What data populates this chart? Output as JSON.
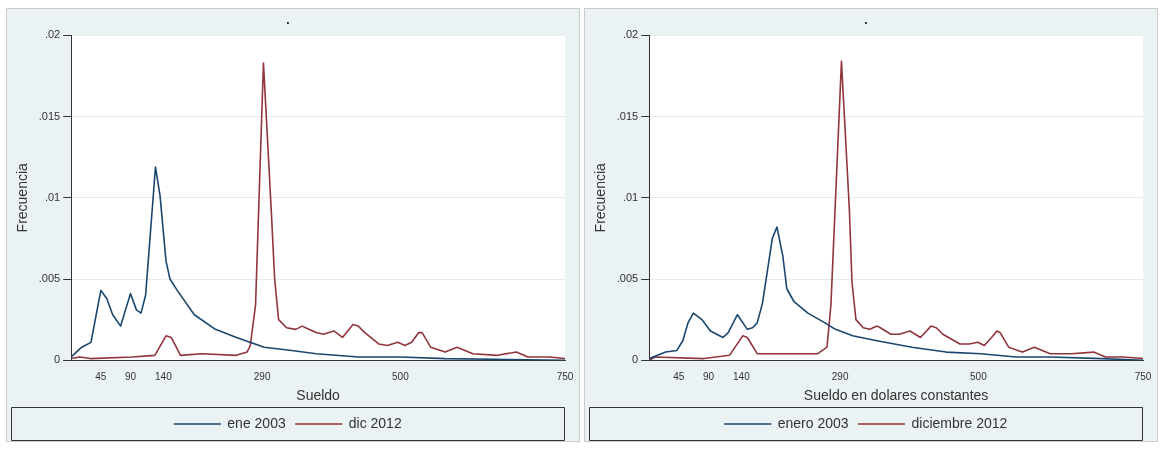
{
  "chart_data": [
    {
      "type": "line",
      "title": ".",
      "xlabel": "Sueldo",
      "ylabel": "Frecuencia",
      "xlim": [
        0,
        750
      ],
      "xticks": [
        45,
        90,
        140,
        290,
        500,
        750
      ],
      "ylim": [
        0,
        0.02
      ],
      "yticks": [
        0,
        {
          "value": 0.005,
          "label": ".005"
        },
        {
          "value": 0.01,
          "label": ".01"
        },
        {
          "value": 0.015,
          "label": ".015"
        },
        {
          "value": 0.02,
          "label": ".02"
        }
      ],
      "grid": "y",
      "legend": "bottom",
      "marker": "none",
      "line_style": "solid",
      "series": [
        {
          "name": "ene 2003",
          "color": "#1a476f",
          "x": [
            0,
            16,
            30,
            45,
            54,
            63,
            75,
            90,
            99,
            106,
            113,
            128,
            135,
            144,
            150,
            161,
            187,
            219,
            251,
            293,
            335,
            372,
            436,
            500,
            568,
            750
          ],
          "values": [
            0.0002,
            0.0008,
            0.0011,
            0.0043,
            0.0038,
            0.0028,
            0.0021,
            0.0041,
            0.0031,
            0.0029,
            0.004,
            0.0119,
            0.0101,
            0.0061,
            0.005,
            0.0043,
            0.0028,
            0.0019,
            0.0014,
            0.0008,
            0.0006,
            0.0004,
            0.0002,
            0.0002,
            0.0001,
            0
          ]
        },
        {
          "name": "dic 2012",
          "color": "#90353b",
          "x": [
            0,
            13,
            29,
            92,
            127,
            144,
            152,
            166,
            198,
            251,
            267,
            272,
            280,
            292,
            304,
            309,
            315,
            327,
            341,
            351,
            356,
            372,
            383,
            399,
            412,
            428,
            436,
            446,
            467,
            480,
            496,
            507,
            517,
            528,
            533,
            546,
            568,
            586,
            610,
            647,
            676,
            694,
            726,
            750
          ],
          "values": [
            0.0001,
            0.0002,
            0.0001,
            0.0002,
            0.0003,
            0.0015,
            0.0014,
            0.0003,
            0.0004,
            0.0003,
            0.0005,
            0.0009,
            0.0034,
            0.0183,
            0.0091,
            0.005,
            0.0025,
            0.002,
            0.0019,
            0.0021,
            0.002,
            0.0017,
            0.0016,
            0.0018,
            0.0014,
            0.0022,
            0.0021,
            0.0017,
            0.001,
            0.0009,
            0.0011,
            0.0009,
            0.0011,
            0.0017,
            0.0017,
            0.0008,
            0.0005,
            0.0008,
            0.0004,
            0.0003,
            0.0005,
            0.0002,
            0.0002,
            0.0001
          ]
        }
      ]
    },
    {
      "type": "line",
      "title": ".",
      "xlabel": "Sueldo en dolares constantes",
      "ylabel": "Frecuencia",
      "xlim": [
        0,
        750
      ],
      "xticks": [
        45,
        90,
        140,
        290,
        500,
        750
      ],
      "ylim": [
        0,
        0.02
      ],
      "yticks": [
        0,
        {
          "value": 0.005,
          "label": ".005"
        },
        {
          "value": 0.01,
          "label": ".01"
        },
        {
          "value": 0.015,
          "label": ".015"
        },
        {
          "value": 0.02,
          "label": ".02"
        }
      ],
      "grid": "y",
      "legend": "bottom",
      "marker": "none",
      "line_style": "solid",
      "series": [
        {
          "name": "enero 2003",
          "color": "#1a476f",
          "x": [
            0,
            25,
            42,
            51,
            59,
            67,
            80,
            93,
            112,
            120,
            134,
            149,
            157,
            164,
            172,
            187,
            194,
            203,
            209,
            220,
            241,
            267,
            283,
            309,
            346,
            399,
            451,
            504,
            557,
            609,
            688,
            750
          ],
          "values": [
            0.0001,
            0.0005,
            0.0006,
            0.0012,
            0.0023,
            0.0029,
            0.0025,
            0.0018,
            0.0014,
            0.0017,
            0.0028,
            0.0019,
            0.002,
            0.0023,
            0.0035,
            0.0075,
            0.0082,
            0.0064,
            0.0044,
            0.0036,
            0.0029,
            0.0023,
            0.0019,
            0.0015,
            0.0012,
            0.0008,
            0.0005,
            0.0004,
            0.0002,
            0.0002,
            0.0001,
            0
          ]
        },
        {
          "name": "diciembre 2012",
          "color": "#90353b",
          "x": [
            0,
            9,
            83,
            122,
            142,
            149,
            164,
            199,
            256,
            270,
            276,
            292,
            304,
            308,
            314,
            325,
            335,
            346,
            351,
            367,
            380,
            396,
            412,
            428,
            436,
            446,
            472,
            486,
            499,
            509,
            520,
            528,
            533,
            546,
            567,
            585,
            609,
            641,
            675,
            693,
            720,
            750
          ],
          "values": [
            0,
            0.0002,
            0.0001,
            0.0003,
            0.0015,
            0.0014,
            0.0004,
            0.0004,
            0.0004,
            0.0008,
            0.0034,
            0.0184,
            0.0093,
            0.0048,
            0.0025,
            0.002,
            0.0019,
            0.0021,
            0.002,
            0.0016,
            0.0016,
            0.0018,
            0.0014,
            0.0021,
            0.002,
            0.0016,
            0.001,
            0.001,
            0.0011,
            0.0009,
            0.0014,
            0.0018,
            0.0017,
            0.0008,
            0.0005,
            0.0008,
            0.0004,
            0.0004,
            0.0005,
            0.0002,
            0.0002,
            0.0001
          ]
        }
      ]
    }
  ]
}
